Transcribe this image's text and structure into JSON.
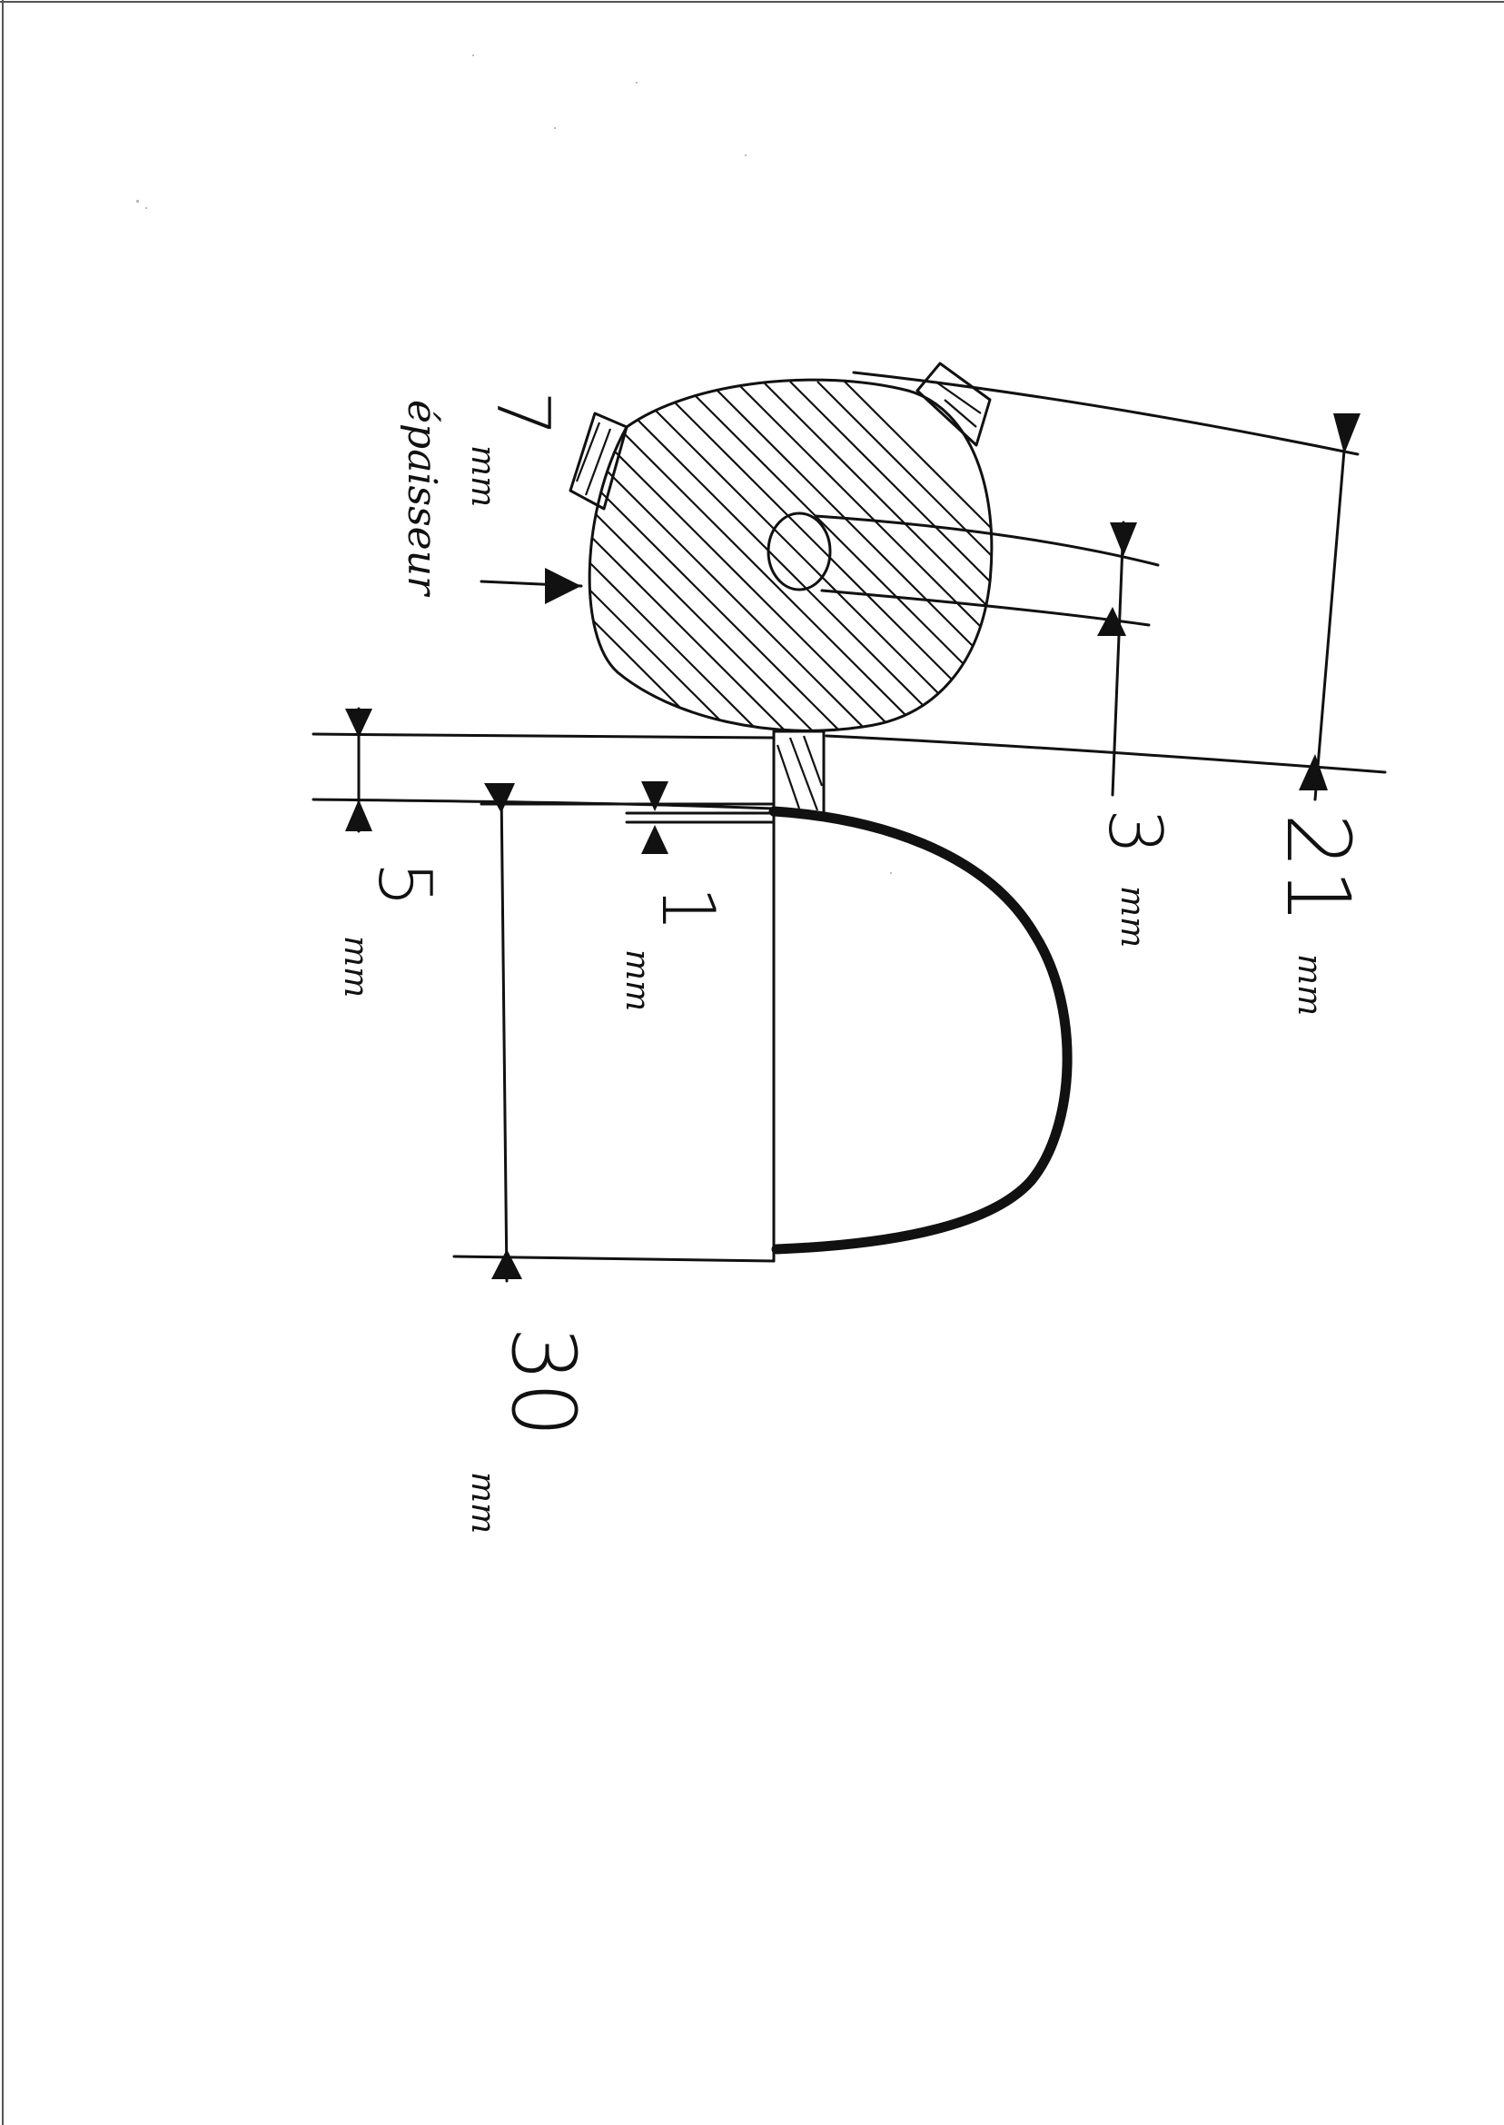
{
  "drawing": {
    "dimensions": {
      "d21": {
        "value": "21",
        "unit": "mm"
      },
      "d3": {
        "value": "3",
        "unit": "mm"
      },
      "d5": {
        "value": "5",
        "unit": "mm"
      },
      "d1": {
        "value": "1",
        "unit": "mm"
      },
      "d30": {
        "value": "30",
        "unit": "mm"
      },
      "d7": {
        "value": "7",
        "unit": "mm",
        "note": "épaisseur"
      }
    }
  }
}
